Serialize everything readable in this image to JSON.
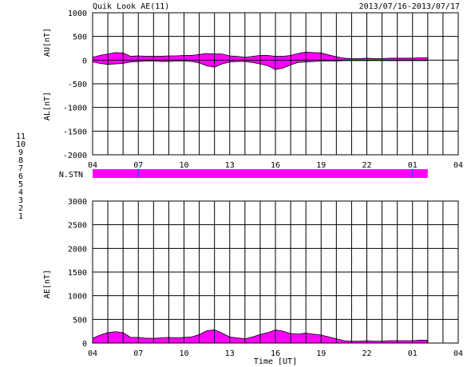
{
  "header": {
    "title": "Quik Look AE(11)",
    "date_range": "2013/07/16-2013/07/17"
  },
  "station_label": "N.STN",
  "station_numbers": [
    {
      "label": "11",
      "color": "#00e0e0"
    },
    {
      "label": "10",
      "color": "#ff00ff"
    },
    {
      "label": "9",
      "color": "#3030ff"
    },
    {
      "label": "8",
      "color": "#f0e000"
    },
    {
      "label": "7",
      "color": "#00c000"
    },
    {
      "label": "6",
      "color": "#ff0000"
    },
    {
      "label": "5",
      "color": "#b0b0b0"
    },
    {
      "label": "4",
      "color": "#8080a0"
    },
    {
      "label": "3",
      "color": "#00a0a0"
    },
    {
      "label": "2",
      "color": "#a000a0"
    },
    {
      "label": "1",
      "color": "#0000c0"
    }
  ],
  "colors": {
    "fill": "#ff00ff",
    "station_bar": "#ff00ff",
    "station_marker": "#3030ff",
    "line": "#000000"
  },
  "chart_data": [
    {
      "type": "area",
      "name": "AU/AL panel",
      "ylabel_top": "AU[nT]",
      "ylabel_bottom": "AL[nT]",
      "ylim": [
        -2000,
        1000
      ],
      "yticks": [
        1000,
        500,
        0,
        -500,
        -1000,
        -1500,
        -2000
      ],
      "xlim": [
        0,
        24
      ],
      "xtick_labels": [
        "04",
        "07",
        "10",
        "13",
        "16",
        "19",
        "22",
        "01",
        "04"
      ],
      "grid": true,
      "x": [
        0,
        0.5,
        1,
        1.5,
        2,
        2.5,
        3,
        3.5,
        4,
        4.5,
        5,
        5.5,
        6,
        6.5,
        7,
        7.5,
        8,
        8.5,
        9,
        9.5,
        10,
        10.5,
        11,
        11.5,
        12,
        12.5,
        13,
        13.5,
        14,
        14.5,
        15,
        15.5,
        16,
        16.5,
        17,
        17.5,
        18,
        18.5,
        19,
        19.5,
        20,
        20.5,
        21,
        21.5,
        22
      ],
      "series": [
        {
          "name": "AU",
          "values": [
            60,
            100,
            130,
            160,
            150,
            80,
            90,
            80,
            80,
            80,
            90,
            90,
            100,
            100,
            120,
            140,
            130,
            130,
            90,
            80,
            60,
            80,
            100,
            100,
            80,
            80,
            100,
            140,
            170,
            160,
            150,
            110,
            70,
            40,
            30,
            30,
            40,
            30,
            30,
            40,
            40,
            40,
            40,
            50,
            50
          ]
        },
        {
          "name": "AL",
          "values": [
            -40,
            -70,
            -90,
            -80,
            -70,
            -40,
            -30,
            -20,
            -20,
            -30,
            -30,
            -20,
            -20,
            -30,
            -60,
            -120,
            -150,
            -80,
            -40,
            -30,
            -30,
            -50,
            -80,
            -120,
            -200,
            -170,
            -100,
            -50,
            -40,
            -30,
            -20,
            -20,
            -20,
            -10,
            -10,
            -10,
            -10,
            -10,
            -10,
            -10,
            -10,
            -10,
            -10,
            -10,
            -10
          ]
        }
      ]
    },
    {
      "type": "area",
      "name": "AE panel",
      "ylabel": "AE[nT]",
      "xlabel": "Time [UT]",
      "ylim": [
        0,
        3000
      ],
      "yticks": [
        3000,
        2500,
        2000,
        1500,
        1000,
        500,
        0
      ],
      "xlim": [
        0,
        24
      ],
      "xtick_labels": [
        "04",
        "07",
        "10",
        "13",
        "16",
        "19",
        "22",
        "01",
        "04"
      ],
      "grid": true,
      "x": [
        0,
        0.5,
        1,
        1.5,
        2,
        2.5,
        3,
        3.5,
        4,
        4.5,
        5,
        5.5,
        6,
        6.5,
        7,
        7.5,
        8,
        8.5,
        9,
        9.5,
        10,
        10.5,
        11,
        11.5,
        12,
        12.5,
        13,
        13.5,
        14,
        14.5,
        15,
        15.5,
        16,
        16.5,
        17,
        17.5,
        18,
        18.5,
        19,
        19.5,
        20,
        20.5,
        21,
        21.5,
        22
      ],
      "series": [
        {
          "name": "AE",
          "values": [
            100,
            170,
            220,
            240,
            220,
            120,
            120,
            100,
            100,
            110,
            120,
            110,
            120,
            130,
            180,
            260,
            280,
            210,
            130,
            110,
            90,
            130,
            180,
            220,
            280,
            250,
            200,
            190,
            210,
            190,
            170,
            130,
            90,
            50,
            40,
            40,
            50,
            40,
            40,
            50,
            50,
            50,
            50,
            60,
            60
          ]
        }
      ]
    }
  ]
}
